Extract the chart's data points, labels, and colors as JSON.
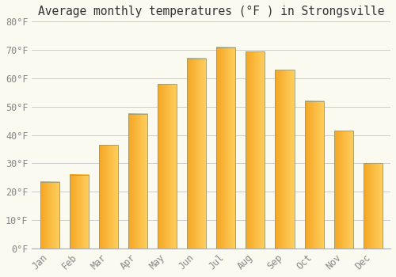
{
  "title": "Average monthly temperatures (°F ) in Strongsville",
  "months": [
    "Jan",
    "Feb",
    "Mar",
    "Apr",
    "May",
    "Jun",
    "Jul",
    "Aug",
    "Sep",
    "Oct",
    "Nov",
    "Dec"
  ],
  "values": [
    23.5,
    26.0,
    36.5,
    47.5,
    58.0,
    67.0,
    71.0,
    69.5,
    63.0,
    52.0,
    41.5,
    30.0
  ],
  "bar_color_left": "#F5A623",
  "bar_color_right": "#FFD060",
  "bar_border_color": "#B8860B",
  "background_color": "#FAFAF0",
  "grid_color": "#CCCCCC",
  "text_color": "#888888",
  "ylim": [
    0,
    80
  ],
  "yticks": [
    0,
    10,
    20,
    30,
    40,
    50,
    60,
    70,
    80
  ],
  "ytick_labels": [
    "0°F",
    "10°F",
    "20°F",
    "30°F",
    "40°F",
    "50°F",
    "60°F",
    "70°F",
    "80°F"
  ],
  "title_fontsize": 10.5,
  "tick_fontsize": 8.5
}
